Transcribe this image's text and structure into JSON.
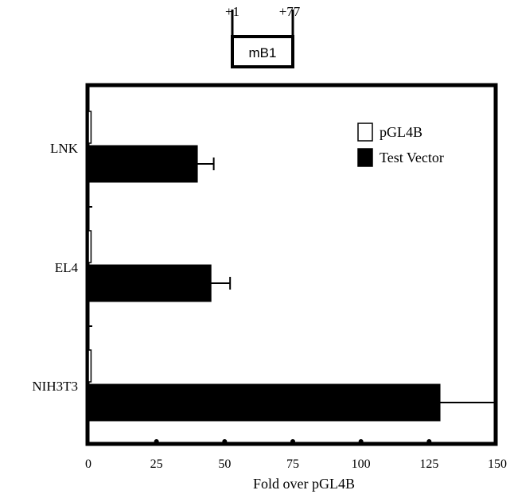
{
  "construct": {
    "name": "mB1",
    "start_label": "+1",
    "end_label": "+77"
  },
  "chart_data": {
    "type": "bar",
    "orientation": "horizontal",
    "categories": [
      "LNK",
      "EL4",
      "NIH3T3"
    ],
    "series": [
      {
        "name": "pGL4B",
        "values": [
          1,
          1,
          1
        ],
        "fill": "#ffffff"
      },
      {
        "name": "Test Vector",
        "values": [
          40,
          45,
          129
        ],
        "errors": [
          6,
          7,
          20
        ],
        "fill": "#000000"
      }
    ],
    "xlabel": "Fold over pGL4B",
    "ylabel": "",
    "xlim": [
      0,
      150
    ],
    "xticks": [
      "0",
      "25",
      "50",
      "75",
      "100",
      "125",
      "150"
    ],
    "grid": false,
    "legend_position": "top-right"
  }
}
